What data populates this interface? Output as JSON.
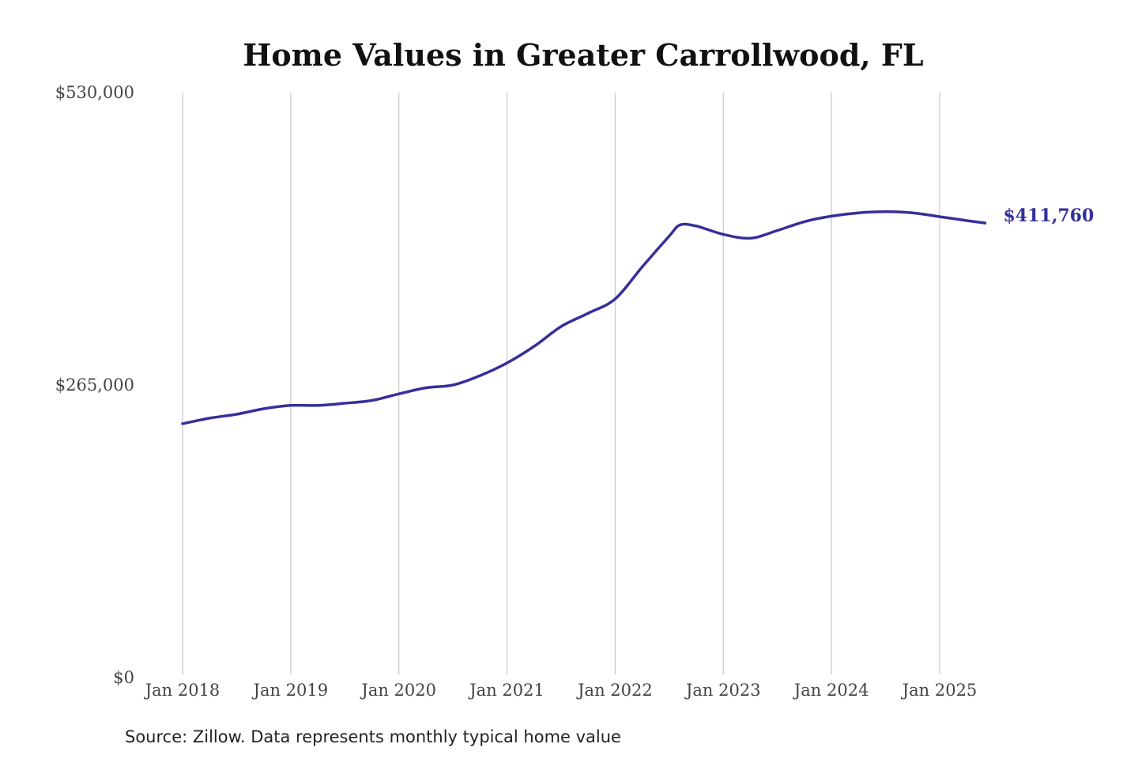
{
  "colors": {
    "line": "#35309a",
    "grid": "#c8c8c8"
  },
  "source": "Source: Zillow. Data represents monthly typical home value",
  "chart_data": {
    "type": "line",
    "title": "Home Values in Greater Carrollwood, FL",
    "xlabel": "",
    "ylabel": "",
    "ylim": [
      0,
      530000
    ],
    "grid": {
      "vertical": true,
      "horizontal": false
    },
    "yticks": [
      {
        "value": 0,
        "label": "$0"
      },
      {
        "value": 265000,
        "label": "$265,000"
      },
      {
        "value": 530000,
        "label": "$530,000"
      }
    ],
    "xticks": [
      {
        "value": 2018.0,
        "label": "Jan 2018"
      },
      {
        "value": 2019.0,
        "label": "Jan 2019"
      },
      {
        "value": 2020.0,
        "label": "Jan 2020"
      },
      {
        "value": 2021.0,
        "label": "Jan 2021"
      },
      {
        "value": 2022.0,
        "label": "Jan 2022"
      },
      {
        "value": 2023.0,
        "label": "Jan 2023"
      },
      {
        "value": 2024.0,
        "label": "Jan 2024"
      },
      {
        "value": 2025.0,
        "label": "Jan 2025"
      }
    ],
    "xlim": [
      2018.0,
      2025.5
    ],
    "end_label": "$411,760",
    "series": [
      {
        "name": "",
        "points": [
          {
            "x": 2018.0,
            "y": 230000
          },
          {
            "x": 2018.25,
            "y": 235000
          },
          {
            "x": 2018.5,
            "y": 238500
          },
          {
            "x": 2018.75,
            "y": 243500
          },
          {
            "x": 2019.0,
            "y": 246500
          },
          {
            "x": 2019.25,
            "y": 246500
          },
          {
            "x": 2019.5,
            "y": 248500
          },
          {
            "x": 2019.75,
            "y": 251000
          },
          {
            "x": 2020.0,
            "y": 257000
          },
          {
            "x": 2020.25,
            "y": 262500
          },
          {
            "x": 2020.5,
            "y": 265000
          },
          {
            "x": 2020.75,
            "y": 273500
          },
          {
            "x": 2021.0,
            "y": 285000
          },
          {
            "x": 2021.25,
            "y": 300000
          },
          {
            "x": 2021.5,
            "y": 318000
          },
          {
            "x": 2021.75,
            "y": 330000
          },
          {
            "x": 2022.0,
            "y": 343000
          },
          {
            "x": 2022.25,
            "y": 372000
          },
          {
            "x": 2022.5,
            "y": 400000
          },
          {
            "x": 2022.6,
            "y": 410000
          },
          {
            "x": 2022.75,
            "y": 409000
          },
          {
            "x": 2023.0,
            "y": 401500
          },
          {
            "x": 2023.25,
            "y": 398000
          },
          {
            "x": 2023.5,
            "y": 405000
          },
          {
            "x": 2023.75,
            "y": 413000
          },
          {
            "x": 2024.0,
            "y": 418000
          },
          {
            "x": 2024.25,
            "y": 421000
          },
          {
            "x": 2024.5,
            "y": 422000
          },
          {
            "x": 2024.75,
            "y": 421000
          },
          {
            "x": 2025.0,
            "y": 417500
          },
          {
            "x": 2025.25,
            "y": 414000
          },
          {
            "x": 2025.42,
            "y": 411760
          }
        ]
      }
    ]
  }
}
